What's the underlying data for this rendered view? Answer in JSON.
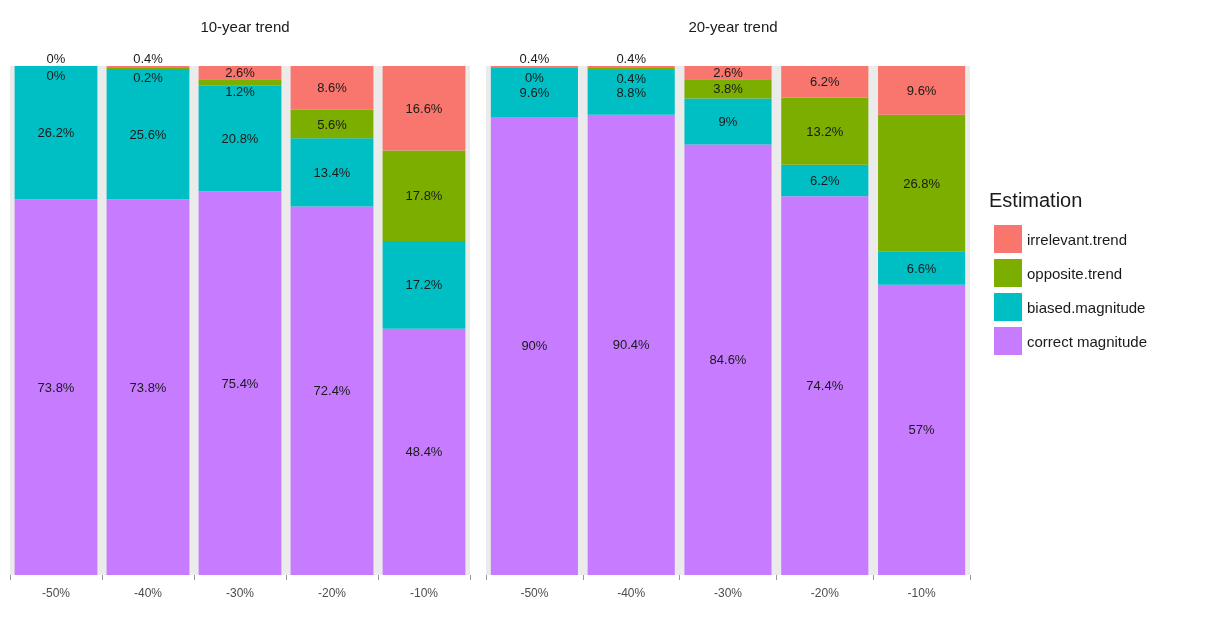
{
  "chart_data": [
    {
      "type": "bar",
      "title": "10-year trend",
      "categories": [
        "-50%",
        "-40%",
        "-30%",
        "-20%",
        "-10%"
      ],
      "stacked": true,
      "ylim": [
        0,
        100
      ],
      "tick_labels": "x",
      "series": [
        {
          "color": "#c77cff",
          "values": [
            73.8,
            73.8,
            75.4,
            72.4,
            48.4
          ],
          "value_labels": [
            "73.8%",
            "73.8%",
            "75.4%",
            "72.4%",
            "48.4%"
          ]
        },
        {
          "color": "#00bfc4",
          "values": [
            26.2,
            25.6,
            20.8,
            13.4,
            17.2
          ],
          "value_labels": [
            "26.2%",
            "25.6%",
            "20.8%",
            "13.4%",
            "17.2%"
          ]
        },
        {
          "color": "#7cae00",
          "values": [
            0,
            0.2,
            1.2,
            5.6,
            17.8
          ],
          "value_labels": [
            "0%",
            "0.2%",
            "1.2%",
            "5.6%",
            "17.8%"
          ]
        },
        {
          "color": "#f8766d",
          "values": [
            0,
            0.4,
            2.6,
            8.6,
            16.6
          ],
          "value_labels": [
            "0%",
            "0.4%",
            "2.6%",
            "8.6%",
            "16.6%"
          ]
        }
      ]
    },
    {
      "type": "bar",
      "title": "20-year trend",
      "categories": [
        "-50%",
        "-40%",
        "-30%",
        "-20%",
        "-10%"
      ],
      "stacked": true,
      "ylim": [
        0,
        100
      ],
      "tick_labels": "x",
      "legend": "right",
      "legend_title": "Estimation",
      "series": [
        {
          "name": "correct magnitude",
          "color": "#c77cff",
          "values": [
            90,
            90.4,
            84.6,
            74.4,
            57
          ],
          "value_labels": [
            "90%",
            "90.4%",
            "84.6%",
            "74.4%",
            "57%"
          ]
        },
        {
          "name": "biased.magnitude",
          "color": "#00bfc4",
          "values": [
            9.6,
            8.8,
            9,
            6.2,
            6.6
          ],
          "value_labels": [
            "9.6%",
            "8.8%",
            "9%",
            "6.2%",
            "6.6%"
          ]
        },
        {
          "name": "opposite.trend",
          "color": "#7cae00",
          "values": [
            0,
            0.4,
            3.8,
            13.2,
            26.8
          ],
          "value_labels": [
            "0%",
            "0.4%",
            "3.8%",
            "13.2%",
            "26.8%"
          ]
        },
        {
          "name": "irrelevant.trend",
          "color": "#f8766d",
          "values": [
            0.4,
            0.4,
            2.6,
            6.2,
            9.6
          ],
          "value_labels": [
            "0.4%",
            "0.4%",
            "2.6%",
            "6.2%",
            "9.6%"
          ]
        }
      ]
    }
  ]
}
